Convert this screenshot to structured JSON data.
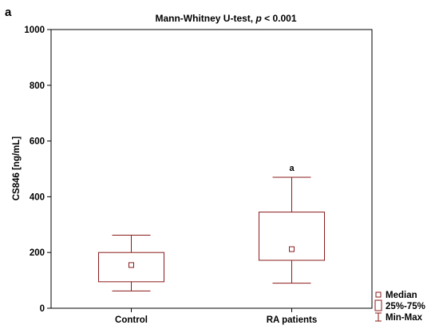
{
  "panel_label": "a",
  "colors": {
    "series": "#8B1A1A",
    "axis": "#000000",
    "background": "#ffffff"
  },
  "chart_data": {
    "type": "boxplot",
    "title_parts": [
      "Mann-Whitney U-test, ",
      "p",
      " < 0.001"
    ],
    "xlabel": "",
    "ylabel": "CS846 [ng/mL]",
    "ylim": [
      0,
      1000
    ],
    "yticks": [
      0,
      200,
      400,
      600,
      800,
      1000
    ],
    "grid": false,
    "legend_position": "bottom-right",
    "categories": [
      "Control",
      "RA patients"
    ],
    "boxes": [
      {
        "category": "Control",
        "median": 155,
        "q1": 95,
        "q3": 200,
        "min": 62,
        "max": 262,
        "annotation": ""
      },
      {
        "category": "RA patients",
        "median": 212,
        "q1": 172,
        "q3": 345,
        "min": 90,
        "max": 470,
        "annotation": "a"
      }
    ],
    "legend": [
      {
        "label": "Median",
        "symbol": "small-square"
      },
      {
        "label": "25%-75%",
        "symbol": "box"
      },
      {
        "label": "Min-Max",
        "symbol": "whisker"
      }
    ]
  }
}
